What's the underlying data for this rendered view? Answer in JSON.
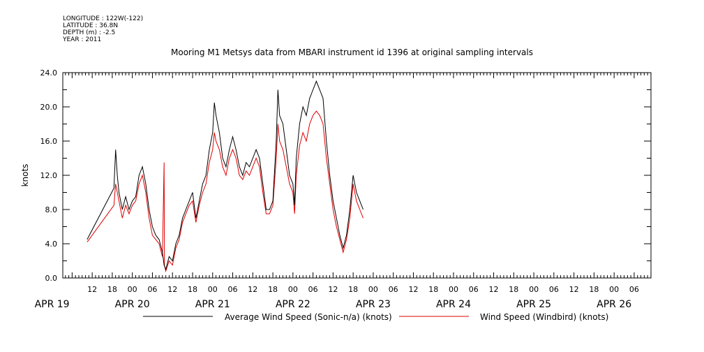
{
  "header": {
    "longitude": "LONGITUDE : 122W(-122)",
    "latitude": "LATITUDE : 36.8N",
    "depth": "DEPTH (m) : -2.5",
    "year": "YEAR : 2011"
  },
  "chart_data": {
    "type": "line",
    "title": "Mooring M1 Metsys data from MBARI instrument id 1396 at original sampling intervals",
    "ylabel": "knots",
    "ylim": [
      0,
      24
    ],
    "yticks": [
      "0.0",
      "4.0",
      "8.0",
      "12.0",
      "16.0",
      "20.0",
      "24.0"
    ],
    "x_unit": "hours since Apr 19 2011 00:00",
    "xlim": [
      10,
      93
    ],
    "hour_ticks": [
      {
        "x": 12,
        "label": "12"
      },
      {
        "x": 18,
        "label": "18"
      },
      {
        "x": 24,
        "label": "00"
      },
      {
        "x": 30,
        "label": "06"
      },
      {
        "x": 36,
        "label": "12"
      },
      {
        "x": 42,
        "label": "18"
      },
      {
        "x": 48,
        "label": "00"
      },
      {
        "x": 54,
        "label": "06"
      },
      {
        "x": 60,
        "label": "12"
      },
      {
        "x": 66,
        "label": "18"
      },
      {
        "x": 72,
        "label": "00"
      },
      {
        "x": 78,
        "label": "06"
      },
      {
        "x": 84,
        "label": "12"
      },
      {
        "x": 90,
        "label": "18"
      },
      {
        "x": 96,
        "label": "00"
      },
      {
        "x": 102,
        "label": "06"
      },
      {
        "x": 108,
        "label": "12"
      },
      {
        "x": 114,
        "label": "18"
      },
      {
        "x": 120,
        "label": "00"
      },
      {
        "x": 126,
        "label": "06"
      },
      {
        "x": 132,
        "label": "12"
      },
      {
        "x": 138,
        "label": "18"
      },
      {
        "x": 144,
        "label": "00"
      },
      {
        "x": 150,
        "label": "06"
      },
      {
        "x": 156,
        "label": "12"
      },
      {
        "x": 162,
        "label": "18"
      },
      {
        "x": 168,
        "label": "00"
      },
      {
        "x": 174,
        "label": "06"
      }
    ],
    "date_ticks": [
      {
        "x": 0,
        "label": "APR 19"
      },
      {
        "x": 24,
        "label": "APR 20"
      },
      {
        "x": 48,
        "label": "APR 21"
      },
      {
        "x": 72,
        "label": "APR 22"
      },
      {
        "x": 96,
        "label": "APR 23"
      },
      {
        "x": 120,
        "label": "APR 24"
      },
      {
        "x": 144,
        "label": "APR 25"
      },
      {
        "x": 168,
        "label": "APR 26"
      }
    ],
    "series": [
      {
        "name": "Average Wind Speed (Sonic-n/a) (knots)",
        "color": "#000000",
        "points": [
          [
            10.5,
            4.5
          ],
          [
            18.5,
            10.5
          ],
          [
            19,
            15
          ],
          [
            19.5,
            12
          ],
          [
            20,
            10
          ],
          [
            21,
            8
          ],
          [
            22,
            9.5
          ],
          [
            23,
            8
          ],
          [
            24,
            9
          ],
          [
            25,
            9.5
          ],
          [
            26,
            12
          ],
          [
            27,
            13
          ],
          [
            28,
            11
          ],
          [
            29,
            8
          ],
          [
            30,
            6
          ],
          [
            31,
            5
          ],
          [
            32,
            4.5
          ],
          [
            33,
            3
          ],
          [
            33.5,
            1.5
          ],
          [
            34,
            1
          ],
          [
            35,
            2.5
          ],
          [
            36,
            2
          ],
          [
            37,
            4
          ],
          [
            38,
            5
          ],
          [
            39,
            7
          ],
          [
            40,
            8
          ],
          [
            41,
            9
          ],
          [
            42,
            10
          ],
          [
            43,
            7
          ],
          [
            44,
            9
          ],
          [
            45,
            11
          ],
          [
            46,
            12
          ],
          [
            47,
            15
          ],
          [
            48,
            17
          ],
          [
            48.5,
            20.5
          ],
          [
            49,
            19
          ],
          [
            50,
            17
          ],
          [
            51,
            14
          ],
          [
            52,
            13
          ],
          [
            53,
            15
          ],
          [
            54,
            16.5
          ],
          [
            55,
            15
          ],
          [
            56,
            13
          ],
          [
            57,
            12
          ],
          [
            58,
            13.5
          ],
          [
            59,
            13
          ],
          [
            60,
            14
          ],
          [
            61,
            15
          ],
          [
            62,
            14
          ],
          [
            63,
            11
          ],
          [
            64,
            8
          ],
          [
            65,
            8
          ],
          [
            66,
            9
          ],
          [
            67,
            16
          ],
          [
            67.5,
            22
          ],
          [
            68,
            19
          ],
          [
            69,
            18
          ],
          [
            70,
            15
          ],
          [
            71,
            12
          ],
          [
            72,
            11
          ],
          [
            72.5,
            8.5
          ],
          [
            73,
            14
          ],
          [
            74,
            18
          ],
          [
            75,
            20
          ],
          [
            76,
            19
          ],
          [
            77,
            21
          ],
          [
            78,
            22
          ],
          [
            79,
            23
          ],
          [
            80,
            22
          ],
          [
            81,
            21
          ],
          [
            82,
            16
          ],
          [
            83,
            12
          ],
          [
            84,
            9
          ],
          [
            85,
            7
          ],
          [
            86,
            5
          ],
          [
            87,
            3.5
          ],
          [
            88,
            5
          ],
          [
            89,
            8
          ],
          [
            90,
            12
          ],
          [
            91,
            10
          ],
          [
            92,
            9
          ],
          [
            93,
            8
          ]
        ]
      },
      {
        "name": "Wind Speed (Windbird) (knots)",
        "color": "#e00000",
        "points": [
          [
            10.5,
            4.2
          ],
          [
            18.5,
            8.5
          ],
          [
            19,
            11
          ],
          [
            19.5,
            10
          ],
          [
            20,
            9
          ],
          [
            21,
            7
          ],
          [
            22,
            8.5
          ],
          [
            23,
            7.5
          ],
          [
            24,
            8.5
          ],
          [
            25,
            9
          ],
          [
            26,
            11
          ],
          [
            27,
            12
          ],
          [
            28,
            10
          ],
          [
            29,
            7
          ],
          [
            30,
            5
          ],
          [
            31,
            4.5
          ],
          [
            32,
            4
          ],
          [
            33,
            2.5
          ],
          [
            33.5,
            13.5
          ],
          [
            33.6,
            1.5
          ],
          [
            34,
            0.8
          ],
          [
            35,
            2
          ],
          [
            36,
            1.5
          ],
          [
            37,
            3.5
          ],
          [
            38,
            4.5
          ],
          [
            39,
            6.5
          ],
          [
            40,
            7.5
          ],
          [
            41,
            8.5
          ],
          [
            42,
            9
          ],
          [
            43,
            6.5
          ],
          [
            44,
            8.5
          ],
          [
            45,
            10
          ],
          [
            46,
            11
          ],
          [
            47,
            13.5
          ],
          [
            48,
            15
          ],
          [
            48.5,
            17
          ],
          [
            49,
            16
          ],
          [
            50,
            15
          ],
          [
            51,
            13
          ],
          [
            52,
            12
          ],
          [
            53,
            14
          ],
          [
            54,
            15
          ],
          [
            55,
            14
          ],
          [
            56,
            12
          ],
          [
            57,
            11.5
          ],
          [
            58,
            12.5
          ],
          [
            59,
            12
          ],
          [
            60,
            13
          ],
          [
            61,
            14
          ],
          [
            62,
            13
          ],
          [
            63,
            10
          ],
          [
            64,
            7.5
          ],
          [
            65,
            7.5
          ],
          [
            66,
            8.5
          ],
          [
            67,
            14
          ],
          [
            67.5,
            18
          ],
          [
            68,
            16
          ],
          [
            69,
            15
          ],
          [
            70,
            13
          ],
          [
            71,
            11
          ],
          [
            72,
            10
          ],
          [
            72.5,
            7.5
          ],
          [
            73,
            12
          ],
          [
            74,
            15.5
          ],
          [
            75,
            17
          ],
          [
            76,
            16
          ],
          [
            77,
            18
          ],
          [
            78,
            19
          ],
          [
            79,
            19.5
          ],
          [
            80,
            19
          ],
          [
            81,
            18
          ],
          [
            82,
            14
          ],
          [
            83,
            11
          ],
          [
            84,
            8
          ],
          [
            85,
            6
          ],
          [
            86,
            4.5
          ],
          [
            87,
            3
          ],
          [
            88,
            4.5
          ],
          [
            89,
            7
          ],
          [
            90,
            11
          ],
          [
            91,
            9
          ],
          [
            92,
            8
          ],
          [
            93,
            7
          ]
        ]
      }
    ]
  }
}
